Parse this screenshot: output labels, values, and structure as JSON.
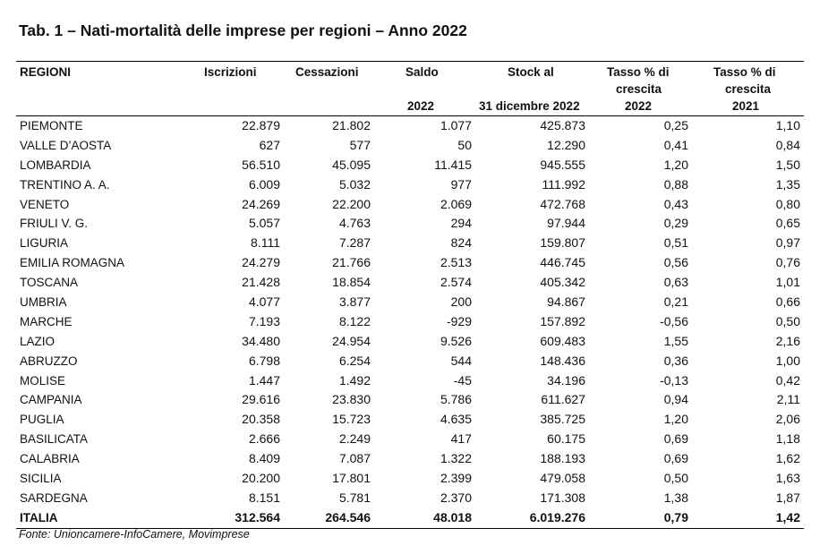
{
  "title": "Tab. 1 – Nati-mortalità delle imprese per regioni – Anno 2022",
  "header": {
    "regioni": "REGIONI",
    "iscrizioni": "Iscrizioni",
    "cessazioni": "Cessazioni",
    "saldo": "Saldo",
    "saldo_year": "2022",
    "stock": "Stock al",
    "stock_date": "31 dicembre 2022",
    "tasso2022_l1": "Tasso % di",
    "tasso2022_l2": "crescita",
    "tasso2022_l3": "2022",
    "tasso2021_l1": "Tasso %  di",
    "tasso2021_l2": "crescita",
    "tasso2021_l3": "2021"
  },
  "rows": [
    {
      "regione": "PIEMONTE",
      "iscrizioni": "22.879",
      "cessazioni": "21.802",
      "saldo": "1.077",
      "stock": "425.873",
      "tasso_2022": "0,25",
      "tasso_2021": "1,10"
    },
    {
      "regione": "VALLE D’AOSTA",
      "iscrizioni": "627",
      "cessazioni": "577",
      "saldo": "50",
      "stock": "12.290",
      "tasso_2022": "0,41",
      "tasso_2021": "0,84"
    },
    {
      "regione": "LOMBARDIA",
      "iscrizioni": "56.510",
      "cessazioni": "45.095",
      "saldo": "11.415",
      "stock": "945.555",
      "tasso_2022": "1,20",
      "tasso_2021": "1,50"
    },
    {
      "regione": "TRENTINO A. A.",
      "iscrizioni": "6.009",
      "cessazioni": "5.032",
      "saldo": "977",
      "stock": "111.992",
      "tasso_2022": "0,88",
      "tasso_2021": "1,35"
    },
    {
      "regione": "VENETO",
      "iscrizioni": "24.269",
      "cessazioni": "22.200",
      "saldo": "2.069",
      "stock": "472.768",
      "tasso_2022": "0,43",
      "tasso_2021": "0,80"
    },
    {
      "regione": "FRIULI V. G.",
      "iscrizioni": "5.057",
      "cessazioni": "4.763",
      "saldo": "294",
      "stock": "97.944",
      "tasso_2022": "0,29",
      "tasso_2021": "0,65"
    },
    {
      "regione": "LIGURIA",
      "iscrizioni": "8.111",
      "cessazioni": "7.287",
      "saldo": "824",
      "stock": "159.807",
      "tasso_2022": "0,51",
      "tasso_2021": "0,97"
    },
    {
      "regione": "EMILIA ROMAGNA",
      "iscrizioni": "24.279",
      "cessazioni": "21.766",
      "saldo": "2.513",
      "stock": "446.745",
      "tasso_2022": "0,56",
      "tasso_2021": "0,76"
    },
    {
      "regione": "TOSCANA",
      "iscrizioni": "21.428",
      "cessazioni": "18.854",
      "saldo": "2.574",
      "stock": "405.342",
      "tasso_2022": "0,63",
      "tasso_2021": "1,01"
    },
    {
      "regione": "UMBRIA",
      "iscrizioni": "4.077",
      "cessazioni": "3.877",
      "saldo": "200",
      "stock": "94.867",
      "tasso_2022": "0,21",
      "tasso_2021": "0,66"
    },
    {
      "regione": "MARCHE",
      "iscrizioni": "7.193",
      "cessazioni": "8.122",
      "saldo": "-929",
      "stock": "157.892",
      "tasso_2022": "-0,56",
      "tasso_2021": "0,50"
    },
    {
      "regione": "LAZIO",
      "iscrizioni": "34.480",
      "cessazioni": "24.954",
      "saldo": "9.526",
      "stock": "609.483",
      "tasso_2022": "1,55",
      "tasso_2021": "2,16"
    },
    {
      "regione": "ABRUZZO",
      "iscrizioni": "6.798",
      "cessazioni": "6.254",
      "saldo": "544",
      "stock": "148.436",
      "tasso_2022": "0,36",
      "tasso_2021": "1,00"
    },
    {
      "regione": "MOLISE",
      "iscrizioni": "1.447",
      "cessazioni": "1.492",
      "saldo": "-45",
      "stock": "34.196",
      "tasso_2022": "-0,13",
      "tasso_2021": "0,42"
    },
    {
      "regione": "CAMPANIA",
      "iscrizioni": "29.616",
      "cessazioni": "23.830",
      "saldo": "5.786",
      "stock": "611.627",
      "tasso_2022": "0,94",
      "tasso_2021": "2,11"
    },
    {
      "regione": "PUGLIA",
      "iscrizioni": "20.358",
      "cessazioni": "15.723",
      "saldo": "4.635",
      "stock": "385.725",
      "tasso_2022": "1,20",
      "tasso_2021": "2,06"
    },
    {
      "regione": "BASILICATA",
      "iscrizioni": "2.666",
      "cessazioni": "2.249",
      "saldo": "417",
      "stock": "60.175",
      "tasso_2022": "0,69",
      "tasso_2021": "1,18"
    },
    {
      "regione": "CALABRIA",
      "iscrizioni": "8.409",
      "cessazioni": "7.087",
      "saldo": "1.322",
      "stock": "188.193",
      "tasso_2022": "0,69",
      "tasso_2021": "1,62"
    },
    {
      "regione": "SICILIA",
      "iscrizioni": "20.200",
      "cessazioni": "17.801",
      "saldo": "2.399",
      "stock": "479.058",
      "tasso_2022": "0,50",
      "tasso_2021": "1,63"
    },
    {
      "regione": "SARDEGNA",
      "iscrizioni": "8.151",
      "cessazioni": "5.781",
      "saldo": "2.370",
      "stock": "171.308",
      "tasso_2022": "1,38",
      "tasso_2021": "1,87"
    }
  ],
  "total": {
    "regione": "ITALIA",
    "iscrizioni": "312.564",
    "cessazioni": "264.546",
    "saldo": "48.018",
    "stock": "6.019.276",
    "tasso_2022": "0,79",
    "tasso_2021": "1,42"
  },
  "source": "Fonte: Unioncamere-InfoCamere, Movimprese"
}
